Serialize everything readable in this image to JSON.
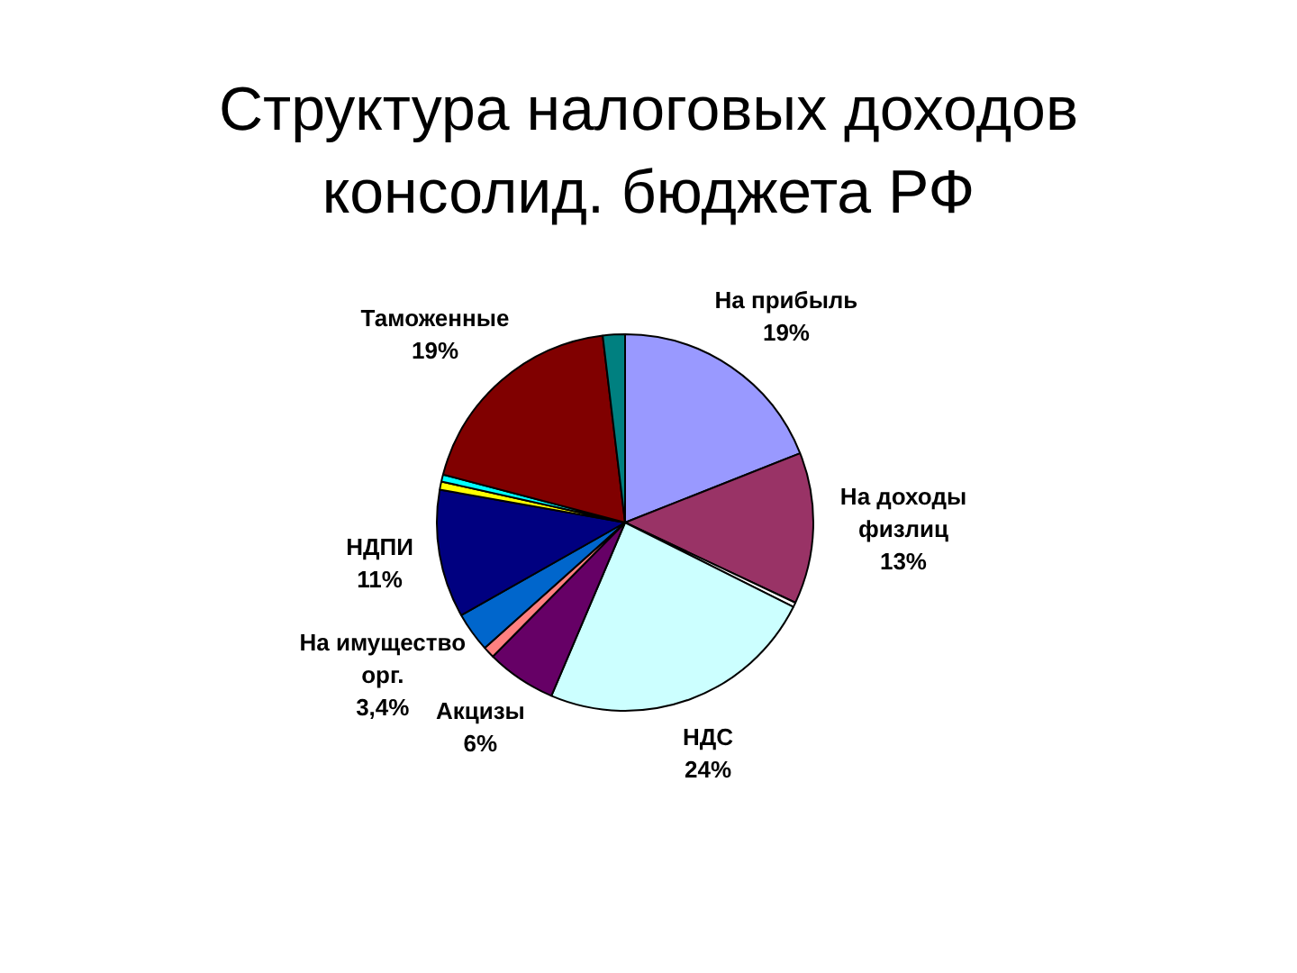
{
  "chart_data": {
    "type": "pie",
    "title": "Структура налоговых доходов консолид. бюджета РФ",
    "categories": [
      "На прибыль",
      "На доходы физлиц",
      null,
      "НДС",
      "Акцизы",
      null,
      "На имущество орг.",
      "НДПИ",
      null,
      null,
      "Таможенные",
      null
    ],
    "values": [
      19,
      13,
      0.4,
      24,
      6,
      1,
      3.4,
      11,
      0.7,
      0.6,
      19,
      1.9
    ],
    "value_labels": [
      "19%",
      "13%",
      null,
      "24%",
      "6%",
      null,
      "3,4%",
      "11%",
      null,
      null,
      "19%",
      null
    ],
    "colors": [
      "#9999ff",
      "#993366",
      "#ffffff",
      "#ccffff",
      "#660066",
      "#ff8080",
      "#0066cc",
      "#000080",
      "#ffff00",
      "#00ffff",
      "#800000",
      "#008080"
    ]
  }
}
